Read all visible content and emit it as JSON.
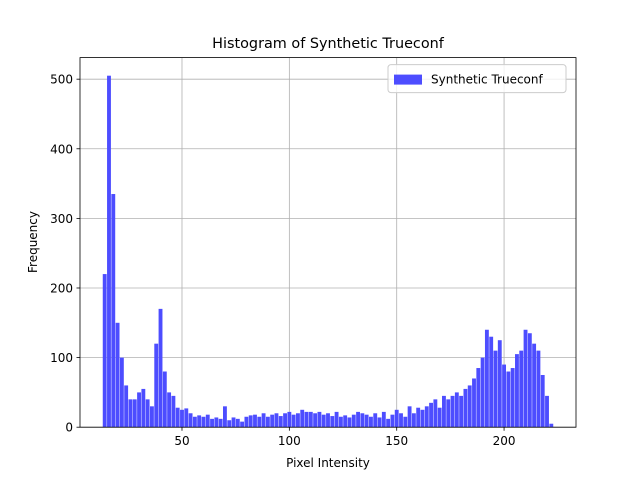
{
  "chart_data": {
    "type": "histogram",
    "title": "Histogram of Synthetic Trueconf",
    "x_label": "Pixel Intensity",
    "y_label": "Frequency",
    "bins": [
      13,
      15,
      17,
      19,
      21,
      23,
      25,
      27,
      29,
      31,
      33,
      35,
      37,
      39,
      41,
      43,
      45,
      47,
      49,
      51,
      53,
      55,
      57,
      59,
      61,
      63,
      65,
      67,
      69,
      71,
      73,
      75,
      77,
      79,
      81,
      83,
      85,
      87,
      89,
      91,
      93,
      95,
      97,
      99,
      101,
      103,
      105,
      107,
      109,
      111,
      113,
      115,
      117,
      119,
      121,
      123,
      125,
      127,
      129,
      131,
      133,
      135,
      137,
      139,
      141,
      143,
      145,
      147,
      149,
      151,
      153,
      155,
      157,
      159,
      161,
      163,
      165,
      167,
      169,
      171,
      173,
      175,
      177,
      179,
      181,
      183,
      185,
      187,
      189,
      191,
      193,
      195,
      197,
      199,
      201,
      203,
      205,
      207,
      209,
      211,
      213,
      215,
      217,
      219,
      221,
      223
    ],
    "series": [
      {
        "name": "Synthetic Trueconf",
        "color": "#4d4dff",
        "values": [
          220,
          505,
          335,
          150,
          100,
          60,
          40,
          40,
          50,
          55,
          40,
          30,
          120,
          170,
          80,
          50,
          45,
          28,
          25,
          27,
          20,
          15,
          17,
          15,
          18,
          12,
          14,
          12,
          30,
          10,
          14,
          12,
          8,
          15,
          17,
          18,
          15,
          20,
          15,
          18,
          20,
          16,
          20,
          22,
          18,
          20,
          25,
          22,
          22,
          20,
          22,
          18,
          20,
          16,
          22,
          15,
          17,
          14,
          18,
          22,
          20,
          18,
          15,
          20,
          14,
          22,
          12,
          18,
          25,
          20,
          15,
          30,
          20,
          28,
          25,
          30,
          35,
          40,
          28,
          45,
          40,
          45,
          50,
          45,
          55,
          60,
          70,
          85,
          100,
          140,
          130,
          110,
          125,
          90,
          80,
          85,
          105,
          110,
          140,
          135,
          120,
          110,
          75,
          45,
          5
        ]
      }
    ],
    "xlim": [
      2.5,
      233.5
    ],
    "ylim": [
      0,
      531
    ],
    "xticks": [
      50,
      100,
      150,
      200
    ],
    "yticks": [
      0,
      100,
      200,
      300,
      400,
      500
    ],
    "grid": true,
    "legend": "upper right"
  }
}
